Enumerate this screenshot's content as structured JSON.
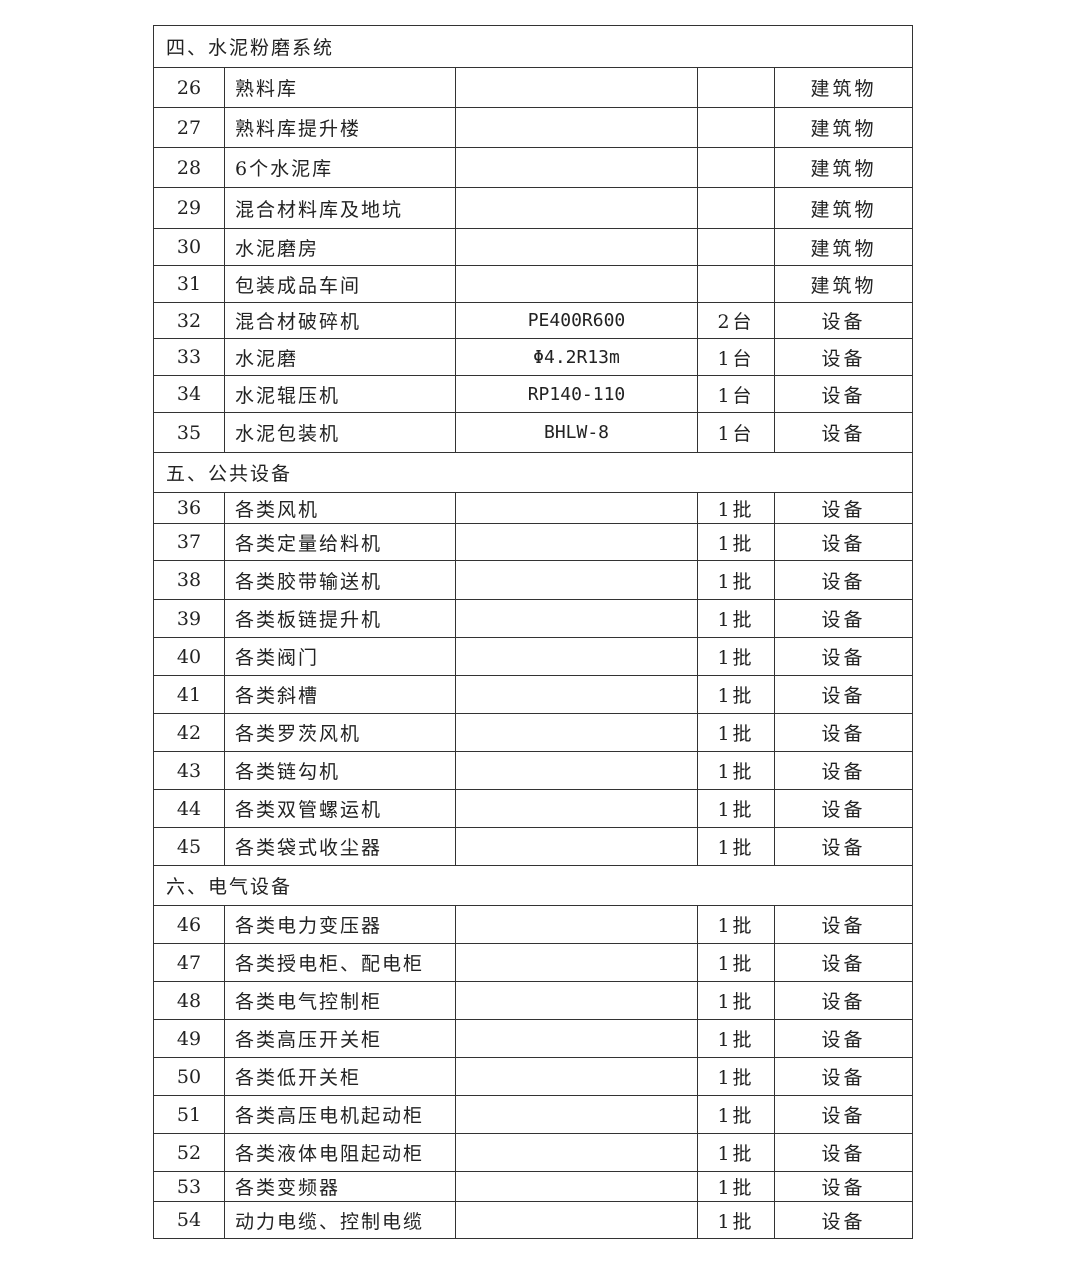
{
  "rows": [
    {
      "section": "四、水泥粉磨系统"
    },
    {
      "no": "26",
      "name": "熟料库",
      "model": "",
      "qty": "",
      "type": "建筑物"
    },
    {
      "no": "27",
      "name": "熟料库提升楼",
      "model": "",
      "qty": "",
      "type": "建筑物"
    },
    {
      "no": "28",
      "name": "6个水泥库",
      "model": "",
      "qty": "",
      "type": "建筑物"
    },
    {
      "no": "29",
      "name": "混合材料库及地坑",
      "model": "",
      "qty": "",
      "type": "建筑物"
    },
    {
      "no": "30",
      "name": "水泥磨房",
      "model": "",
      "qty": "",
      "type": "建筑物"
    },
    {
      "no": "31",
      "name": "包装成品车间",
      "model": "",
      "qty": "",
      "type": "建筑物"
    },
    {
      "no": "32",
      "name": "混合材破碎机",
      "model": "PE400R600",
      "qty": "2台",
      "type": "设备"
    },
    {
      "no": "33",
      "name": "水泥磨",
      "model": "Φ4.2R13m",
      "qty": "1台",
      "type": "设备"
    },
    {
      "no": "34",
      "name": "水泥辊压机",
      "model": "RP140-110",
      "qty": "1台",
      "type": "设备"
    },
    {
      "no": "35",
      "name": "水泥包装机",
      "model": "BHLW-8",
      "qty": "1台",
      "type": "设备"
    },
    {
      "section": "五、公共设备"
    },
    {
      "no": "36",
      "name": "各类风机",
      "model": "",
      "qty": "1批",
      "type": "设备"
    },
    {
      "no": "37",
      "name": "各类定量给料机",
      "model": "",
      "qty": "1批",
      "type": "设备"
    },
    {
      "no": "38",
      "name": "各类胶带输送机",
      "model": "",
      "qty": "1批",
      "type": "设备"
    },
    {
      "no": "39",
      "name": "各类板链提升机",
      "model": "",
      "qty": "1批",
      "type": "设备"
    },
    {
      "no": "40",
      "name": "各类阀门",
      "model": "",
      "qty": "1批",
      "type": "设备"
    },
    {
      "no": "41",
      "name": "各类斜槽",
      "model": "",
      "qty": "1批",
      "type": "设备"
    },
    {
      "no": "42",
      "name": "各类罗茨风机",
      "model": "",
      "qty": "1批",
      "type": "设备"
    },
    {
      "no": "43",
      "name": "各类链勾机",
      "model": "",
      "qty": "1批",
      "type": "设备"
    },
    {
      "no": "44",
      "name": "各类双管螺运机",
      "model": "",
      "qty": "1批",
      "type": "设备"
    },
    {
      "no": "45",
      "name": "各类袋式收尘器",
      "model": "",
      "qty": "1批",
      "type": "设备"
    },
    {
      "section": "六、电气设备"
    },
    {
      "no": "46",
      "name": "各类电力变压器",
      "model": "",
      "qty": "1批",
      "type": "设备"
    },
    {
      "no": "47",
      "name": "各类授电柜、配电柜",
      "model": "",
      "qty": "1批",
      "type": "设备"
    },
    {
      "no": "48",
      "name": "各类电气控制柜",
      "model": "",
      "qty": "1批",
      "type": "设备"
    },
    {
      "no": "49",
      "name": "各类高压开关柜",
      "model": "",
      "qty": "1批",
      "type": "设备"
    },
    {
      "no": "50",
      "name": "各类低开关柜",
      "model": "",
      "qty": "1批",
      "type": "设备"
    },
    {
      "no": "51",
      "name": "各类高压电机起动柜",
      "model": "",
      "qty": "1批",
      "type": "设备"
    },
    {
      "no": "52",
      "name": "各类液体电阻起动柜",
      "model": "",
      "qty": "1批",
      "type": "设备"
    },
    {
      "no": "53",
      "name": "各类变频器",
      "model": "",
      "qty": "1批",
      "type": "设备"
    },
    {
      "no": "54",
      "name": "动力电缆、控制电缆",
      "model": "",
      "qty": "1批",
      "type": "设备"
    }
  ]
}
